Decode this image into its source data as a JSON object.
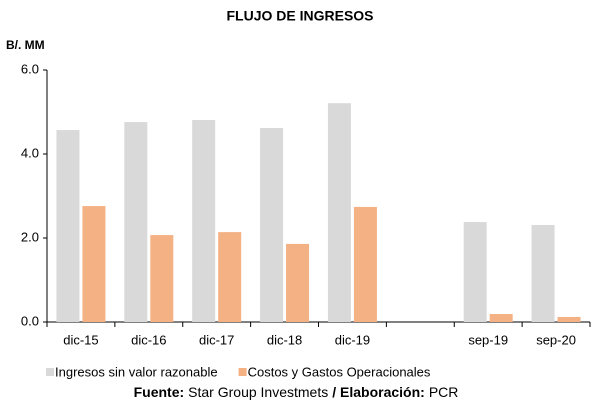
{
  "chart_data": {
    "type": "bar",
    "title": "FLUJO DE INGRESOS",
    "y_label": "B/. MM",
    "categories": [
      "dic-15",
      "dic-16",
      "dic-17",
      "dic-18",
      "dic-19",
      null,
      "sep-19",
      "sep-20"
    ],
    "series": [
      {
        "name": "Ingresos sin valor razonable",
        "color": "#d9d9d9",
        "values": [
          4.57,
          4.76,
          4.81,
          4.62,
          5.21,
          null,
          2.38,
          2.31
        ]
      },
      {
        "name": "Costos y Gastos Operacionales",
        "color": "#f4b183",
        "values": [
          2.76,
          2.07,
          2.14,
          1.86,
          2.74,
          null,
          0.19,
          0.12
        ]
      }
    ],
    "ylim": [
      0,
      6
    ],
    "yticks": [
      {
        "value": 0,
        "label": "0.0"
      },
      {
        "value": 2,
        "label": "2.0"
      },
      {
        "value": 4,
        "label": "4.0"
      },
      {
        "value": 6,
        "label": "6.0"
      }
    ],
    "grid": false,
    "legend": "bottom"
  },
  "footer": {
    "source_label": "Fuente:",
    "source": "Star Group Investmets",
    "credit_label": "/ Elaboración:",
    "credit": "PCR"
  }
}
